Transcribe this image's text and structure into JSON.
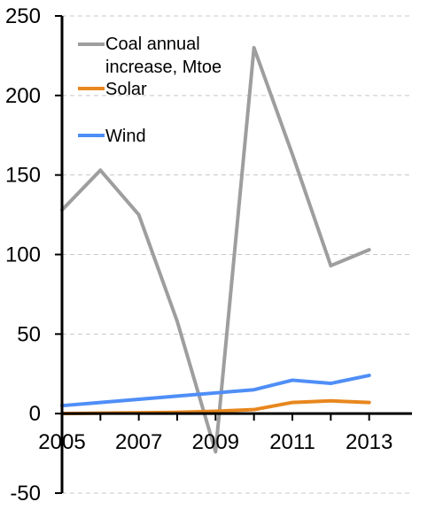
{
  "chart_data": {
    "type": "line",
    "title": "",
    "xlabel": "",
    "ylabel": "",
    "x": [
      2005,
      2006,
      2007,
      2008,
      2009,
      2010,
      2011,
      2012,
      2013
    ],
    "x_tick_labels": [
      "2005",
      "2007",
      "2009",
      "2011",
      "2013"
    ],
    "y_tick_labels": [
      "250",
      "200",
      "150",
      "100",
      "50",
      "0",
      "-50"
    ],
    "ylim": [
      -50,
      250
    ],
    "xlim": [
      2005,
      2014
    ],
    "grid": "horizontal dashed",
    "legend_position": "top-left",
    "series": [
      {
        "name": "Coal annual increase, Mtoe",
        "name_lines": [
          "Coal annual",
          "increase, Mtoe"
        ],
        "color": "#9e9e9e",
        "values": [
          128,
          153,
          125,
          58,
          -24,
          230,
          163,
          93,
          103
        ]
      },
      {
        "name": "Solar",
        "name_lines": [
          "Solar"
        ],
        "color": "#e8871e",
        "values": [
          0,
          0.3,
          0.5,
          0.8,
          1.5,
          2.5,
          7,
          8,
          7
        ]
      },
      {
        "name": "Wind",
        "name_lines": [
          "Wind"
        ],
        "color": "#4f8ef7",
        "values": [
          5,
          7,
          9,
          11,
          13,
          15,
          21,
          19,
          24
        ]
      }
    ]
  }
}
